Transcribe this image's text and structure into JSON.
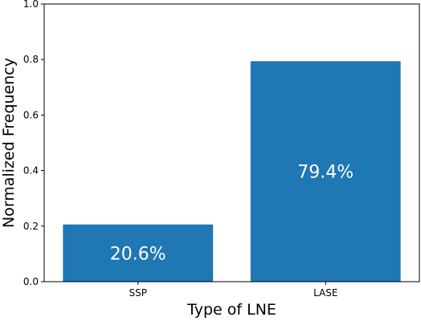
{
  "chart_data": {
    "type": "bar",
    "categories": [
      "SSP",
      "LASE"
    ],
    "values": [
      0.206,
      0.794
    ],
    "value_labels": [
      "20.6%",
      "79.4%"
    ],
    "xlabel": "Type of LNE",
    "ylabel": "Normalized Frequency",
    "ylim": [
      0,
      1.0
    ],
    "yticks": [
      "0.0",
      "0.2",
      "0.4",
      "0.6",
      "0.8",
      "1.0"
    ],
    "ytick_values": [
      0,
      0.2,
      0.4,
      0.6,
      0.8,
      1.0
    ],
    "grid": false,
    "bar_color": "#1f77b4",
    "label_color": "#ffffff"
  }
}
